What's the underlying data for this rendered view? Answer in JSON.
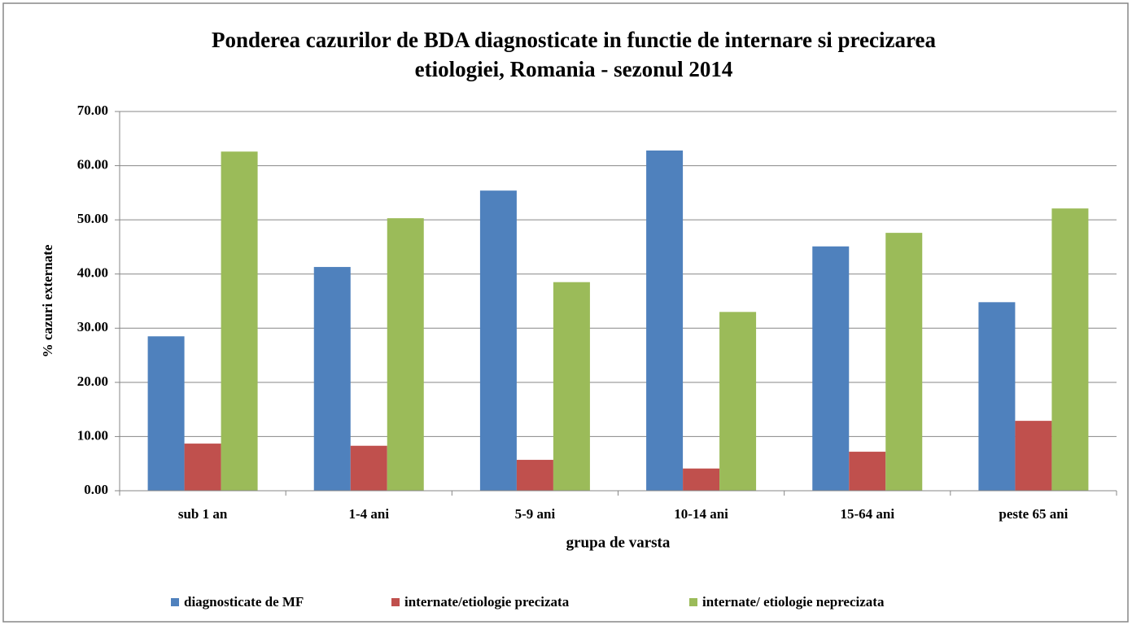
{
  "chart_data": {
    "type": "bar",
    "title": [
      "Ponderea cazurilor de BDA diagnosticate in functie de internare si precizarea",
      "etiologiei, Romania - sezonul 2014"
    ],
    "x_label": "grupa de varsta",
    "y_label": "% cazuri externate",
    "categories": [
      "sub 1 an",
      "1-4 ani",
      "5-9 ani",
      "10-14 ani",
      "15-64 ani",
      "peste 65 ani"
    ],
    "series": [
      {
        "name": "diagnosticate de MF",
        "color": "#4f81bd",
        "values": [
          28.5,
          41.3,
          55.4,
          62.8,
          45.1,
          34.8
        ]
      },
      {
        "name": "internate/etiologie precizata",
        "color": "#c0504d",
        "values": [
          8.7,
          8.3,
          5.7,
          4.1,
          7.2,
          12.9
        ]
      },
      {
        "name": "internate/ etiologie neprecizata",
        "color": "#9bbb59",
        "values": [
          62.6,
          50.3,
          38.5,
          33.0,
          47.6,
          52.1
        ]
      }
    ],
    "ylim": [
      0,
      70
    ],
    "yticks": [
      {
        "value": 0,
        "label": "0.00"
      },
      {
        "value": 10,
        "label": "10.00"
      },
      {
        "value": 20,
        "label": "20.00"
      },
      {
        "value": 30,
        "label": "30.00"
      },
      {
        "value": 40,
        "label": "40.00"
      },
      {
        "value": 50,
        "label": "50.00"
      },
      {
        "value": 60,
        "label": "60.00"
      },
      {
        "value": 70,
        "label": "70.00"
      }
    ],
    "grid": true,
    "legend": "bottom"
  }
}
